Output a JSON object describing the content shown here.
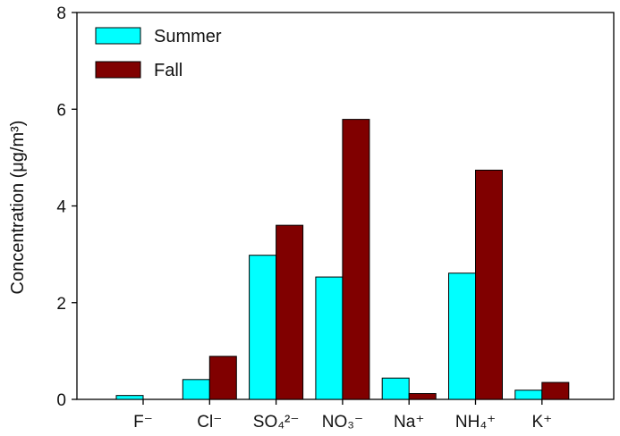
{
  "chart_data": {
    "type": "bar",
    "ylabel": "Concentration (μg/m³)",
    "ylim": [
      0,
      8
    ],
    "yticks": [
      0,
      2,
      4,
      6,
      8
    ],
    "categories": [
      "F⁻",
      "Cl⁻",
      "SO₄²⁻",
      "NO₃⁻",
      "Na⁺",
      "NH₄⁺",
      "K⁺"
    ],
    "series": [
      {
        "name": "Summer",
        "color": "#00FFFF",
        "values": [
          0.08,
          0.41,
          2.98,
          2.53,
          0.44,
          2.61,
          0.19
        ]
      },
      {
        "name": "Fall",
        "color": "#800000",
        "values": [
          0.0,
          0.89,
          3.6,
          5.79,
          0.12,
          4.74,
          0.35
        ]
      }
    ],
    "legend": "top-left",
    "grid": false
  }
}
